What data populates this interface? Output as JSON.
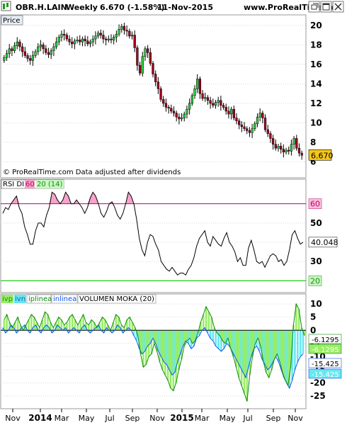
{
  "header": {
    "symbol": "OBR.H.LAIN",
    "period": "Weekly",
    "quote": "6.670 (-1.58%)",
    "date": "11-Nov-2015",
    "site": "www.ProRealTime.com"
  },
  "icons": [
    "window-restore-icon",
    "window-maximize-icon",
    "window-close-icon"
  ],
  "price_panel": {
    "label": "Price",
    "footer": "© ProRealTime.com  Data adjusted after dividends",
    "last_value": "6.670",
    "last_value_color": "#f5c518"
  },
  "rsi_panel": {
    "label_parts": [
      "RSI DI",
      "60",
      "20 (14)"
    ],
    "level_60_label": "60",
    "level_20_label": "20",
    "current_label": "40.048"
  },
  "moka_panel": {
    "label_parts": [
      "ivp",
      "ivn",
      "iplinea",
      "inlinea",
      "VOLUMEN MOKA (20)"
    ],
    "value_labels": [
      "-6.1295",
      "-6.1295",
      "-15.425",
      "-15.425"
    ]
  },
  "chart_data": [
    {
      "type": "candlestick",
      "title": "OBR.H.LAIN Weekly",
      "ylabel": "Price",
      "ylim": [
        5.6,
        21
      ],
      "y_ticks": [
        6,
        8,
        10,
        12,
        14,
        16,
        18,
        20
      ],
      "x_ticks": [
        "Nov",
        "2014",
        "Mar",
        "May",
        "Jul",
        "Sep",
        "Nov",
        "2015",
        "Mar",
        "May",
        "Jul",
        "Sep",
        "Nov"
      ],
      "close": [
        16.7,
        17.1,
        17.6,
        17.4,
        17.9,
        18.3,
        17.8,
        17.3,
        16.9,
        16.6,
        16.4,
        16.9,
        17.3,
        17.8,
        18.0,
        17.6,
        17.2,
        17.0,
        17.4,
        17.8,
        18.3,
        18.8,
        19.1,
        19.0,
        18.6,
        18.3,
        18.1,
        18.4,
        18.5,
        18.3,
        18.6,
        18.4,
        18.1,
        18.3,
        18.6,
        18.9,
        19.2,
        19.0,
        18.6,
        18.5,
        18.6,
        18.5,
        18.8,
        19.1,
        19.6,
        19.9,
        19.5,
        19.4,
        18.9,
        19.0,
        17.7,
        15.9,
        15.1,
        16.8,
        17.6,
        17.2,
        16.1,
        15.0,
        14.2,
        13.5,
        12.4,
        12.0,
        11.6,
        11.5,
        11.2,
        11.0,
        10.6,
        10.4,
        10.5,
        10.9,
        11.4,
        12.0,
        12.8,
        13.5,
        14.5,
        13.0,
        12.5,
        12.6,
        12.3,
        12.0,
        11.8,
        12.1,
        12.3,
        11.8,
        11.6,
        11.2,
        10.9,
        11.4,
        10.5,
        10.2,
        9.8,
        9.6,
        9.4,
        9.2,
        9.0,
        9.4,
        9.9,
        10.6,
        11.0,
        10.5,
        9.3,
        8.9,
        8.4,
        7.8,
        7.4,
        7.6,
        7.3,
        7.0,
        7.2,
        7.1,
        7.8,
        8.4,
        7.4,
        6.9,
        6.67
      ],
      "annotations": [
        "6.670"
      ]
    },
    {
      "type": "line",
      "title": "RSI DI 60 20 (14)",
      "ylim": [
        15,
        72
      ],
      "y_ticks": [
        20,
        30,
        40,
        50,
        60
      ],
      "levels": [
        60,
        20
      ],
      "values": [
        55,
        58,
        57,
        60,
        62,
        64,
        58,
        55,
        48,
        44,
        39,
        39,
        46,
        50,
        50,
        48,
        54,
        58,
        66,
        65,
        62,
        60,
        62,
        66,
        64,
        60,
        60,
        62,
        60,
        58,
        55,
        58,
        63,
        66,
        64,
        60,
        55,
        53,
        56,
        60,
        61,
        58,
        54,
        52,
        55,
        60,
        66,
        64,
        60,
        52,
        42,
        36,
        33,
        40,
        44,
        43,
        39,
        36,
        30,
        28,
        26,
        25,
        27,
        25,
        23,
        24,
        24,
        23,
        26,
        28,
        32,
        38,
        42,
        44,
        46,
        40,
        38,
        43,
        41,
        39,
        38,
        42,
        45,
        40,
        38,
        35,
        30,
        32,
        28,
        28,
        37,
        41,
        36,
        30,
        29,
        30,
        27,
        30,
        33,
        34,
        33,
        30,
        31,
        28,
        30,
        36,
        44,
        46,
        42,
        39,
        40.05
      ],
      "annotations": [
        "40.048"
      ]
    },
    {
      "type": "area",
      "title": "VOLUMEN MOKA (20)",
      "ylim": [
        -29,
        13
      ],
      "y_ticks": [
        -25,
        -20,
        -15,
        -10,
        -5,
        0,
        5,
        10
      ],
      "series": [
        {
          "name": "ivp",
          "values": [
            4,
            6,
            3,
            1,
            3,
            5,
            2,
            0,
            2,
            4,
            6,
            5,
            3,
            1,
            4,
            7,
            6,
            3,
            1,
            3,
            5,
            4,
            2,
            3,
            5,
            6,
            4,
            2,
            4,
            6,
            3,
            2,
            4,
            3,
            1,
            3,
            5,
            4,
            2,
            0,
            3,
            6,
            5,
            2,
            1,
            4,
            5,
            3,
            1,
            -2,
            -9,
            -14,
            -13,
            -10,
            -9,
            -5,
            -8,
            -12,
            -15,
            -17,
            -19,
            -22,
            -23,
            -20,
            -15,
            -11,
            -6,
            -4,
            -3,
            -5,
            -4,
            -1,
            3,
            6,
            9,
            7,
            5,
            1,
            -1,
            -2,
            -4,
            -5,
            -3,
            -7,
            -10,
            -14,
            -18,
            -21,
            -24,
            -27,
            -17,
            -10,
            -5,
            -3,
            -6,
            -12,
            -16,
            -18,
            -15,
            -11,
            -9,
            -12,
            -16,
            -19,
            -21,
            -14,
            2,
            10,
            8,
            1,
            -2
          ]
        },
        {
          "name": "ivn",
          "values": [
            1,
            -1,
            0,
            2,
            1,
            -1,
            0,
            1,
            2,
            0,
            -1,
            1,
            2,
            0,
            -1,
            1,
            2,
            1,
            -1,
            0,
            2,
            1,
            0,
            1,
            -1,
            0,
            1,
            0,
            -1,
            1,
            2,
            0,
            -1,
            0,
            1,
            2,
            0,
            -1,
            1,
            0,
            -1,
            0,
            2,
            1,
            -1,
            0,
            1,
            0,
            -2,
            -4,
            -7,
            -9,
            -8,
            -6,
            -5,
            -3,
            -5,
            -8,
            -10,
            -12,
            -13,
            -15,
            -17,
            -16,
            -12,
            -9,
            -6,
            -4,
            -5,
            -7,
            -6,
            -3,
            -2,
            0,
            1,
            -1,
            -3,
            -4,
            -6,
            -7,
            -8,
            -7,
            -5,
            -6,
            -8,
            -10,
            -12,
            -14,
            -16,
            -18,
            -14,
            -10,
            -7,
            -6,
            -8,
            -11,
            -13,
            -15,
            -14,
            -12,
            -10,
            -12,
            -15,
            -18,
            -20,
            -22,
            -19,
            -15,
            -12,
            -10,
            -9
          ]
        },
        {
          "name": "iplinea",
          "values": [
            -6.1295
          ]
        },
        {
          "name": "inlinea",
          "values": [
            -15.425
          ]
        }
      ],
      "annotations": [
        "-6.1295",
        "-6.1295",
        "-15.425",
        "-15.425"
      ]
    }
  ],
  "colors": {
    "up_candle": "#2ecc40",
    "down_candle": "#a0001e",
    "rsi_line": "#000000",
    "rsi_level_60": "#c0006a",
    "rsi_level_20": "#1fcf1f",
    "rsi_fill": "#f8a0c8",
    "ivp_fill": "#99ee66",
    "ivn_fill": "#66e8f0",
    "ivp_line": "#118811",
    "ivn_line": "#1155ee",
    "grid": "#d8d8d8",
    "axis_text": "#000000"
  }
}
